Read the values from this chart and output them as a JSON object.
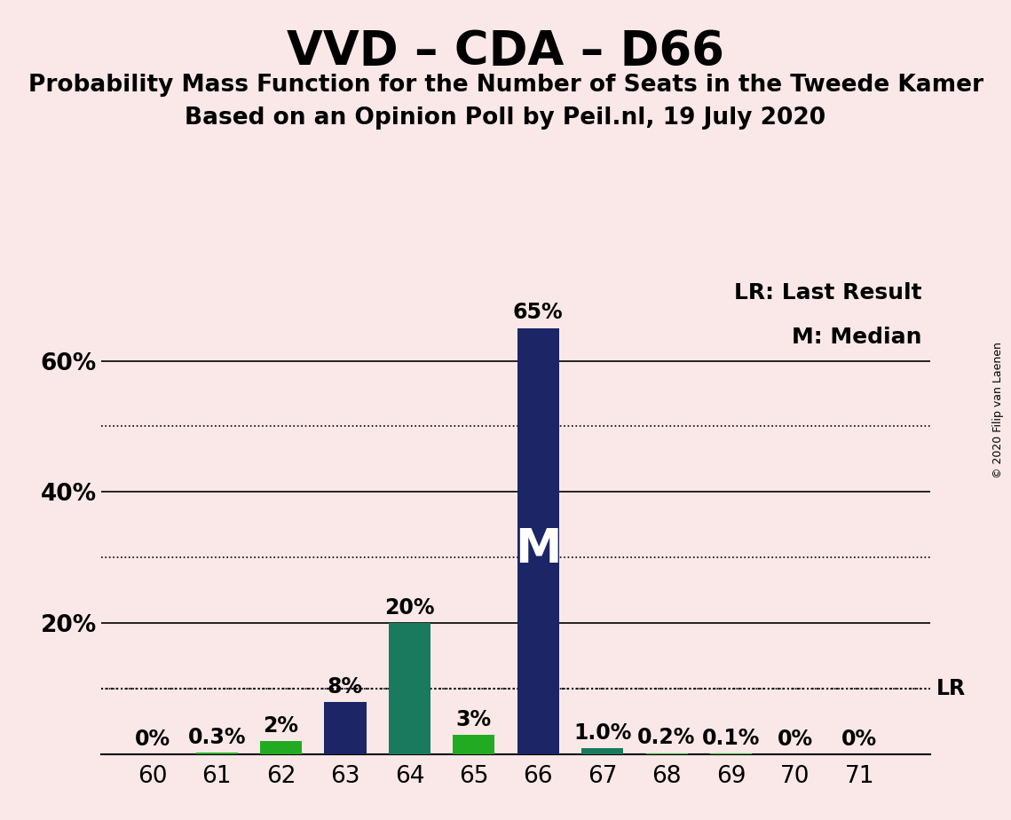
{
  "title": "VVD – CDA – D66",
  "subtitle1": "Probability Mass Function for the Number of Seats in the Tweede Kamer",
  "subtitle2": "Based on an Opinion Poll by Peil.nl, 19 July 2020",
  "copyright": "© 2020 Filip van Laenen",
  "seats": [
    60,
    61,
    62,
    63,
    64,
    65,
    66,
    67,
    68,
    69,
    70,
    71
  ],
  "probabilities": [
    0.0,
    0.3,
    2.0,
    8.0,
    20.0,
    3.0,
    65.0,
    1.0,
    0.2,
    0.1,
    0.0,
    0.0
  ],
  "labels": [
    "0%",
    "0.3%",
    "2%",
    "8%",
    "20%",
    "3%",
    "65%",
    "1.0%",
    "0.2%",
    "0.1%",
    "0%",
    "0%"
  ],
  "bar_colors": [
    "#22AA22",
    "#22AA22",
    "#22AA22",
    "#1C2566",
    "#1A7A5E",
    "#22AA22",
    "#1C2566",
    "#1A7A5E",
    "#22AA22",
    "#22AA22",
    "#22AA22",
    "#22AA22"
  ],
  "median_seat": 66,
  "median_label": "M",
  "lr_value": 10.0,
  "lr_label": "LR",
  "legend_lr": "LR: Last Result",
  "legend_m": "M: Median",
  "background_color": "#FAE8E8",
  "ylim": [
    0,
    75
  ],
  "solid_yticks": [
    20,
    40,
    60
  ],
  "dotted_yticks": [
    10,
    30,
    50
  ],
  "ytick_labels": [
    20,
    40,
    60
  ],
  "title_fontsize": 38,
  "subtitle_fontsize": 19,
  "label_fontsize": 17,
  "tick_fontsize": 19,
  "legend_fontsize": 18,
  "m_fontsize": 38
}
